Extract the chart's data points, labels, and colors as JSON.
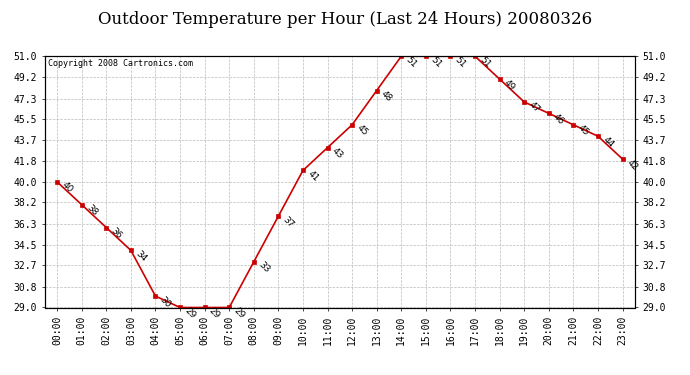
{
  "title": "Outdoor Temperature per Hour (Last 24 Hours) 20080326",
  "copyright": "Copyright 2008 Cartronics.com",
  "hours": [
    "00:00",
    "01:00",
    "02:00",
    "03:00",
    "04:00",
    "05:00",
    "06:00",
    "07:00",
    "08:00",
    "09:00",
    "10:00",
    "11:00",
    "12:00",
    "13:00",
    "14:00",
    "15:00",
    "16:00",
    "17:00",
    "18:00",
    "19:00",
    "20:00",
    "21:00",
    "22:00",
    "23:00"
  ],
  "temps": [
    40,
    38,
    36,
    34,
    30,
    29,
    29,
    29,
    33,
    37,
    41,
    43,
    45,
    48,
    51,
    51,
    51,
    51,
    49,
    47,
    46,
    45,
    44,
    42
  ],
  "ylim": [
    29.0,
    51.0
  ],
  "yticks": [
    29.0,
    30.8,
    32.7,
    34.5,
    36.3,
    38.2,
    40.0,
    41.8,
    43.7,
    45.5,
    47.3,
    49.2,
    51.0
  ],
  "line_color": "#cc0000",
  "marker_color": "#cc0000",
  "bg_color": "#ffffff",
  "grid_color": "#bbbbbb",
  "title_fontsize": 12,
  "tick_fontsize": 7,
  "annot_fontsize": 6.5
}
